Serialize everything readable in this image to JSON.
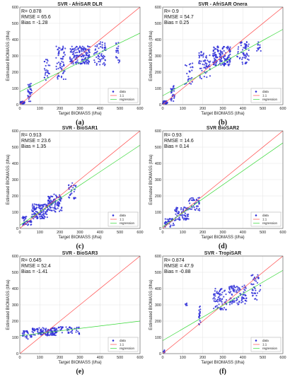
{
  "figure": {
    "xlabel": "Target BIOMASS (t/ha)",
    "ylabel": "Estimated BIOMASS (t/ha)",
    "legend": [
      "data",
      "1:1",
      "regression"
    ]
  },
  "colors": {
    "data": "#2f2fd8",
    "identity": "#ff5050",
    "regression": "#35d835",
    "grid": "#e3e3e3",
    "axis": "#555555"
  },
  "chart_data": [
    {
      "type": "scatter",
      "panel": "(a)",
      "title": "SVR - AfriSAR DLR",
      "stats": {
        "r": "R= 0.878",
        "rmse": "RMSE = 65.6",
        "bias": "Bias = -1.28"
      },
      "xlabel": "Target BIOMASS (t/ha)",
      "ylabel": "Estimated BIOMASS (t/ha)",
      "xlim": [
        0,
        600
      ],
      "ylim": [
        0,
        600
      ],
      "xticks": [
        0,
        100,
        200,
        300,
        400,
        500,
        600
      ],
      "yticks": [
        0,
        100,
        200,
        300,
        400,
        500,
        600
      ],
      "legend_position": "bottom-right",
      "grid": true,
      "regression": {
        "slope": 0.6,
        "intercept": 80
      },
      "clusters": [
        {
          "x": [
            0,
            25
          ],
          "y": [
            5,
            20
          ],
          "n": 30
        },
        {
          "x": [
            40,
            60
          ],
          "y": [
            20,
            130
          ],
          "n": 35
        },
        {
          "x": [
            120,
            150
          ],
          "y": [
            150,
            280
          ],
          "n": 25
        },
        {
          "x": [
            180,
            230
          ],
          "y": [
            150,
            360
          ],
          "n": 60
        },
        {
          "x": [
            250,
            350
          ],
          "y": [
            250,
            360
          ],
          "n": 150
        },
        {
          "x": [
            370,
            430
          ],
          "y": [
            240,
            390
          ],
          "n": 60
        },
        {
          "x": [
            480,
            500
          ],
          "y": [
            250,
            390
          ],
          "n": 20
        }
      ]
    },
    {
      "type": "scatter",
      "panel": "(b)",
      "title": "SVR - AfriSAR Onera",
      "stats": {
        "r": "R= 0.9",
        "rmse": "RMSE = 54.7",
        "bias": "Bias = 0.25"
      },
      "xlabel": "Target BIOMASS (t/ha)",
      "ylabel": "Estimated BIOMASS (t/ha)",
      "xlim": [
        0,
        600
      ],
      "ylim": [
        0,
        600
      ],
      "xticks": [
        0,
        100,
        200,
        300,
        400,
        500,
        600
      ],
      "yticks": [
        0,
        100,
        200,
        300,
        400,
        500,
        600
      ],
      "legend_position": "bottom-right",
      "grid": true,
      "regression": {
        "slope": 0.68,
        "intercept": 55
      },
      "clusters": [
        {
          "x": [
            0,
            25
          ],
          "y": [
            5,
            25
          ],
          "n": 30
        },
        {
          "x": [
            40,
            60
          ],
          "y": [
            20,
            120
          ],
          "n": 30
        },
        {
          "x": [
            110,
            150
          ],
          "y": [
            120,
            260
          ],
          "n": 25
        },
        {
          "x": [
            180,
            240
          ],
          "y": [
            160,
            330
          ],
          "n": 60
        },
        {
          "x": [
            250,
            340
          ],
          "y": [
            240,
            360
          ],
          "n": 150
        },
        {
          "x": [
            370,
            430
          ],
          "y": [
            250,
            400
          ],
          "n": 60
        },
        {
          "x": [
            470,
            490
          ],
          "y": [
            330,
            390
          ],
          "n": 12
        }
      ]
    },
    {
      "type": "scatter",
      "panel": "(c)",
      "title": "SVR - BioSAR1",
      "stats": {
        "r": "R= 0.913",
        "rmse": "RMSE = 23.6",
        "bias": "Bias = 1.35"
      },
      "xlabel": "Target BIOMASS (t/ha)",
      "ylabel": "Estimated BIOMASS (t/ha)",
      "xlim": [
        0,
        600
      ],
      "ylim": [
        0,
        600
      ],
      "xticks": [
        0,
        100,
        200,
        300,
        400,
        500,
        600
      ],
      "yticks": [
        0,
        100,
        200,
        300,
        400,
        500,
        600
      ],
      "legend_position": "bottom-right",
      "grid": true,
      "regression": {
        "slope": 0.82,
        "intercept": 20
      },
      "clusters": [
        {
          "x": [
            10,
            60
          ],
          "y": [
            20,
            80
          ],
          "n": 40
        },
        {
          "x": [
            60,
            140
          ],
          "y": [
            60,
            150
          ],
          "n": 120
        },
        {
          "x": [
            140,
            210
          ],
          "y": [
            100,
            210
          ],
          "n": 100
        },
        {
          "x": [
            240,
            280
          ],
          "y": [
            180,
            280
          ],
          "n": 30
        }
      ]
    },
    {
      "type": "scatter",
      "panel": "(d)",
      "title": "SVR BioSAR2",
      "stats": {
        "r": "R= 0.93",
        "rmse": "RMSE = 14.6",
        "bias": "Bias = 0.14"
      },
      "xlabel": "Target BIOMASS (t/ha)",
      "ylabel": "Estimated BIOMASS (t/ha)",
      "xlim": [
        0,
        600
      ],
      "ylim": [
        0,
        600
      ],
      "xticks": [
        0,
        100,
        200,
        300,
        400,
        500,
        600
      ],
      "yticks": [
        0,
        100,
        200,
        300,
        400,
        500,
        600
      ],
      "legend_position": "bottom-right",
      "grid": true,
      "regression": {
        "slope": 0.86,
        "intercept": 10
      },
      "clusters": [
        {
          "x": [
            10,
            60
          ],
          "y": [
            10,
            60
          ],
          "n": 40
        },
        {
          "x": [
            60,
            130
          ],
          "y": [
            50,
            130
          ],
          "n": 70
        },
        {
          "x": [
            130,
            185
          ],
          "y": [
            110,
            190
          ],
          "n": 40
        }
      ]
    },
    {
      "type": "scatter",
      "panel": "(e)",
      "title": "SVR - BioSAR3",
      "stats": {
        "r": "R= 0.645",
        "rmse": "RMSE = 52.4",
        "bias": "Bias = -1.41"
      },
      "xlabel": "Target BIOMASS (t/ha)",
      "ylabel": "Estimated BIOMASS (t/ha)",
      "xlim": [
        0,
        600
      ],
      "ylim": [
        0,
        600
      ],
      "xticks": [
        0,
        100,
        200,
        300,
        400,
        500,
        600
      ],
      "yticks": [
        0,
        100,
        200,
        300,
        400,
        500,
        600
      ],
      "legend_position": "bottom-right",
      "grid": true,
      "regression": {
        "slope": 0.15,
        "intercept": 110
      },
      "clusters": [
        {
          "x": [
            10,
            60
          ],
          "y": [
            90,
            140
          ],
          "n": 30
        },
        {
          "x": [
            60,
            180
          ],
          "y": [
            110,
            160
          ],
          "n": 120
        },
        {
          "x": [
            180,
            300
          ],
          "y": [
            120,
            165
          ],
          "n": 50
        }
      ]
    },
    {
      "type": "scatter",
      "panel": "(f)",
      "title": "SVR - TropiSAR",
      "stats": {
        "r": "R= 0.874",
        "rmse": "RMSE = 47.9",
        "bias": "Bias = -0.88"
      },
      "xlabel": "Target BIOMASS (t/ha)",
      "ylabel": "Estimated BIOMASS (t/ha)",
      "xlim": [
        0,
        600
      ],
      "ylim": [
        0,
        600
      ],
      "xticks": [
        0,
        100,
        200,
        300,
        400,
        500,
        600
      ],
      "yticks": [
        0,
        100,
        200,
        300,
        400,
        500,
        600
      ],
      "legend_position": "bottom-right",
      "grid": true,
      "regression": {
        "slope": 0.72,
        "intercept": 80
      },
      "clusters": [
        {
          "x": [
            0,
            10
          ],
          "y": [
            5,
            25
          ],
          "n": 6
        },
        {
          "x": [
            110,
            125
          ],
          "y": [
            295,
            310
          ],
          "n": 5
        },
        {
          "x": [
            180,
            190
          ],
          "y": [
            170,
            300
          ],
          "n": 20
        },
        {
          "x": [
            250,
            320
          ],
          "y": [
            270,
            400
          ],
          "n": 70
        },
        {
          "x": [
            330,
            420
          ],
          "y": [
            300,
            420
          ],
          "n": 90
        },
        {
          "x": [
            440,
            490
          ],
          "y": [
            330,
            490
          ],
          "n": 40
        }
      ]
    }
  ]
}
